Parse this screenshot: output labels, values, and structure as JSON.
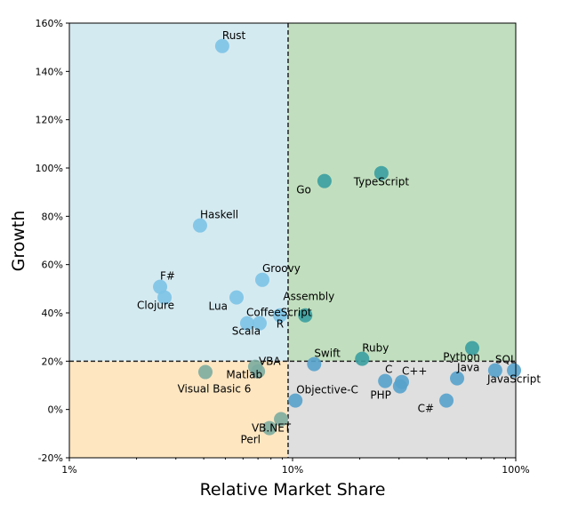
{
  "chart_data": {
    "type": "scatter",
    "title": "",
    "xlabel": "Relative Market Share",
    "ylabel": "Growth",
    "xscale": "log",
    "xlim": [
      1,
      100
    ],
    "ylim": [
      -20,
      160
    ],
    "xticks": [
      1,
      10,
      100
    ],
    "xtick_labels": [
      "1%",
      "10%",
      "100%"
    ],
    "yticks": [
      -20,
      0,
      20,
      40,
      60,
      80,
      100,
      120,
      140,
      160
    ],
    "ytick_labels": [
      "-20%",
      "0%",
      "20%",
      "40%",
      "60%",
      "80%",
      "100%",
      "120%",
      "140%",
      "160%"
    ],
    "grid": false,
    "legend": "none",
    "divider_x": 9.55,
    "divider_y": 20,
    "quadrant_colors": {
      "top_left": "#d4eaf1",
      "top_right": "#c1dfbe",
      "bottom_left": "#fee6c1",
      "bottom_right": "#dfdfdf"
    },
    "point_colors": {
      "top_left": "#7cc3e6",
      "top_right": "#3a9fa0",
      "bottom_left": "#7caca0",
      "bottom_right": "#56a2cc"
    },
    "points": [
      {
        "label": "Rust",
        "x": 4.84,
        "y": 150.5
      },
      {
        "label": "Haskell",
        "x": 3.85,
        "y": 76.2
      },
      {
        "label": "F#",
        "x": 2.55,
        "y": 50.8
      },
      {
        "label": "Clojure",
        "x": 2.67,
        "y": 46.4
      },
      {
        "label": "Lua",
        "x": 5.61,
        "y": 46.4
      },
      {
        "label": "Groovy",
        "x": 7.32,
        "y": 53.7
      },
      {
        "label": "Scala",
        "x": 6.26,
        "y": 35.7
      },
      {
        "label": "CoffeeScript",
        "x": 7.12,
        "y": 35.7
      },
      {
        "label": "R",
        "x": 8.79,
        "y": 39.0
      },
      {
        "label": "Assembly",
        "x": 11.4,
        "y": 39.0
      },
      {
        "label": "Go",
        "x": 13.9,
        "y": 94.6
      },
      {
        "label": "TypeScript",
        "x": 25.0,
        "y": 97.9
      },
      {
        "label": "VBA",
        "x": 6.8,
        "y": 17.7
      },
      {
        "label": "Matlab",
        "x": 7.0,
        "y": 15.8
      },
      {
        "label": "Visual Basic 6",
        "x": 4.07,
        "y": 15.5
      },
      {
        "label": "Perl",
        "x": 7.88,
        "y": -7.7
      },
      {
        "label": "VB.NET",
        "x": 8.88,
        "y": -4.0
      },
      {
        "label": "Objective-C",
        "x": 10.3,
        "y": 3.7
      },
      {
        "label": "Swift",
        "x": 12.5,
        "y": 18.8
      },
      {
        "label": "Ruby",
        "x": 20.5,
        "y": 21.0
      },
      {
        "label": "C",
        "x": 26.0,
        "y": 11.8
      },
      {
        "label": "PHP",
        "x": 30.3,
        "y": 9.6
      },
      {
        "label": "C++",
        "x": 30.9,
        "y": 11.4
      },
      {
        "label": "C#",
        "x": 48.9,
        "y": 3.7
      },
      {
        "label": "Java",
        "x": 54.6,
        "y": 12.9
      },
      {
        "label": "Python",
        "x": 63.8,
        "y": 25.4
      },
      {
        "label": "SQL",
        "x": 80.9,
        "y": 16.2
      },
      {
        "label": "JavaScript",
        "x": 98.2,
        "y": 16.2
      }
    ]
  }
}
